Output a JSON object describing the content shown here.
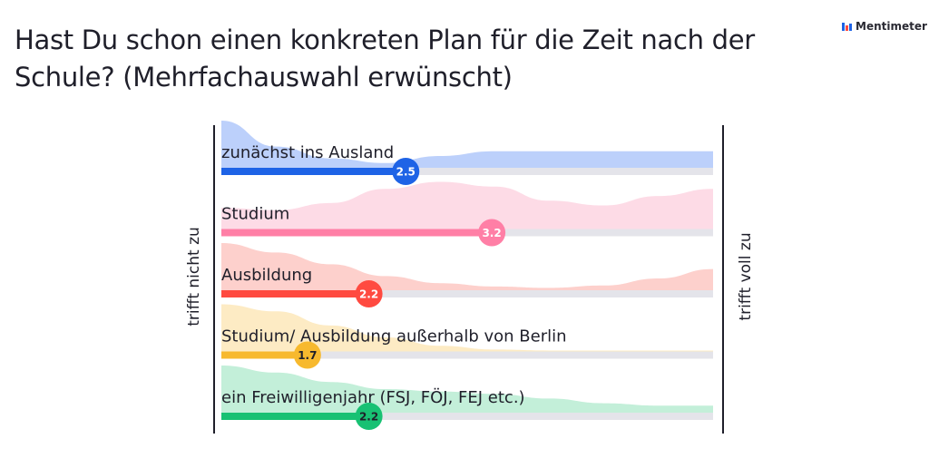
{
  "title": "Hast Du schon einen konkreten Plan für die Zeit nach der Schule? (Mehrfachauswahl erwünscht)",
  "brand": {
    "name": "Mentimeter",
    "icon": "mentimeter-logo-icon"
  },
  "chart_data": {
    "type": "scale",
    "scale_min": 1,
    "scale_max": 5,
    "axis_left_label": "trifft nicht zu",
    "axis_right_label": "trifft voll zu",
    "items": [
      {
        "label": "zunächst ins Ausland",
        "value": 2.5,
        "color": "#1e63e6",
        "fill": "#bcd0fb",
        "textColor": "#ffffff",
        "distribution": [
          1.0,
          0.45,
          0.2,
          0.1,
          0.25,
          0.35,
          0.35,
          0.35,
          0.35,
          0.35
        ]
      },
      {
        "label": "Studium",
        "value": 3.2,
        "color": "#ff7fa6",
        "fill": "#fddbe6",
        "textColor": "#ffffff",
        "distribution": [
          0.45,
          0.4,
          0.55,
          0.85,
          1.0,
          0.9,
          0.6,
          0.5,
          0.7,
          0.85
        ]
      },
      {
        "label": "Ausbildung",
        "value": 2.2,
        "color": "#ff4a40",
        "fill": "#fdd0cc",
        "textColor": "#ffffff",
        "distribution": [
          1.0,
          0.8,
          0.55,
          0.3,
          0.15,
          0.08,
          0.05,
          0.1,
          0.25,
          0.45
        ]
      },
      {
        "label": "Studium/ Ausbildung außerhalb von Berlin",
        "value": 1.7,
        "color": "#f7b92e",
        "fill": "#fdebc4",
        "textColor": "#1f1f2a",
        "distribution": [
          1.0,
          0.85,
          0.55,
          0.3,
          0.12,
          0.04,
          0.02,
          0.02,
          0.02,
          0.02
        ]
      },
      {
        "label": "ein Freiwilligenjahr (FSJ, FÖJ, FEJ etc.)",
        "value": 2.2,
        "color": "#18c173",
        "fill": "#c3efd9",
        "textColor": "#1f1f2a",
        "distribution": [
          1.0,
          0.85,
          0.65,
          0.5,
          0.45,
          0.4,
          0.3,
          0.2,
          0.15,
          0.15
        ]
      }
    ]
  }
}
